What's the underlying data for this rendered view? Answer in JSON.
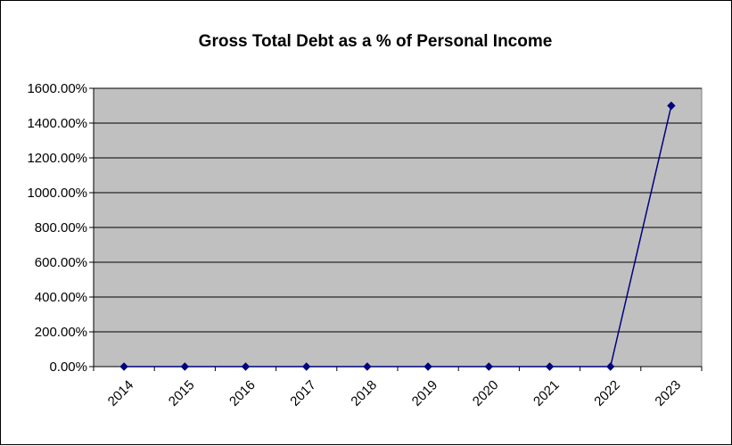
{
  "chart_data": {
    "type": "line",
    "title": "Gross Total Debt as a % of Personal Income",
    "xlabel": "",
    "ylabel": "",
    "categories": [
      "2014",
      "2015",
      "2016",
      "2017",
      "2018",
      "2019",
      "2020",
      "2021",
      "2022",
      "2023"
    ],
    "series": [
      {
        "values": [
          0,
          0,
          0,
          0,
          0,
          0,
          0,
          0,
          0,
          1500
        ]
      }
    ],
    "ylim": [
      0,
      1600
    ],
    "yticks": [
      0,
      200,
      400,
      600,
      800,
      1000,
      1200,
      1400,
      1600
    ],
    "ytick_labels": [
      "0.00%",
      "200.00%",
      "400.00%",
      "600.00%",
      "800.00%",
      "1000.00%",
      "1200.00%",
      "1400.00%",
      "1600.00%"
    ],
    "grid": true,
    "legend": "none",
    "colors": {
      "plot_background": "#c0c0c0",
      "series_line": "#000080",
      "gridline": "#000000"
    }
  }
}
